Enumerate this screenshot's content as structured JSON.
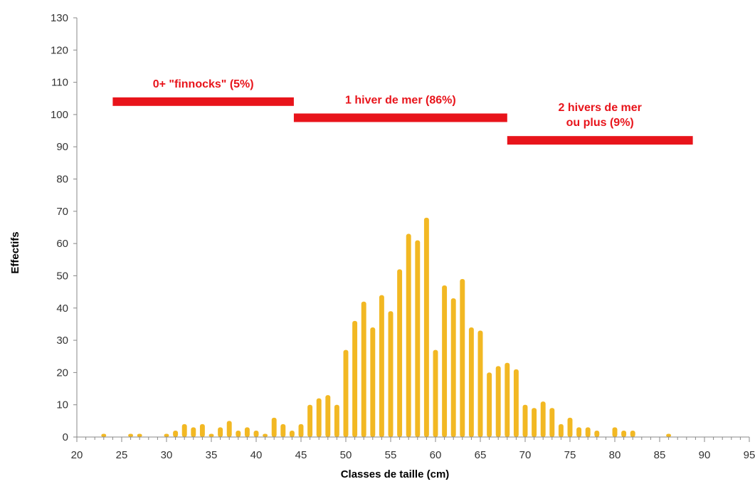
{
  "chart_data": {
    "type": "bar",
    "xlabel": "Classes de taille (cm)",
    "ylabel": "Effectifs",
    "xlim": [
      20,
      95
    ],
    "ylim": [
      0,
      130
    ],
    "x_ticks": [
      20,
      25,
      30,
      35,
      40,
      45,
      50,
      55,
      60,
      65,
      70,
      75,
      80,
      85,
      90,
      95
    ],
    "y_ticks": [
      0,
      10,
      20,
      30,
      40,
      50,
      60,
      70,
      80,
      90,
      100,
      110,
      120,
      130
    ],
    "grid": false,
    "bar_color": "#f2b823",
    "bars": [
      {
        "x": 23,
        "y": 1
      },
      {
        "x": 26,
        "y": 1
      },
      {
        "x": 27,
        "y": 1
      },
      {
        "x": 30,
        "y": 1
      },
      {
        "x": 31,
        "y": 2
      },
      {
        "x": 32,
        "y": 4
      },
      {
        "x": 33,
        "y": 3
      },
      {
        "x": 34,
        "y": 4
      },
      {
        "x": 35,
        "y": 1
      },
      {
        "x": 36,
        "y": 3
      },
      {
        "x": 37,
        "y": 5
      },
      {
        "x": 38,
        "y": 2
      },
      {
        "x": 39,
        "y": 3
      },
      {
        "x": 40,
        "y": 2
      },
      {
        "x": 41,
        "y": 1
      },
      {
        "x": 42,
        "y": 6
      },
      {
        "x": 43,
        "y": 4
      },
      {
        "x": 44,
        "y": 2
      },
      {
        "x": 45,
        "y": 4
      },
      {
        "x": 46,
        "y": 10
      },
      {
        "x": 47,
        "y": 12
      },
      {
        "x": 48,
        "y": 13
      },
      {
        "x": 49,
        "y": 10
      },
      {
        "x": 50,
        "y": 27
      },
      {
        "x": 51,
        "y": 36
      },
      {
        "x": 52,
        "y": 42
      },
      {
        "x": 53,
        "y": 34
      },
      {
        "x": 54,
        "y": 44
      },
      {
        "x": 55,
        "y": 39
      },
      {
        "x": 56,
        "y": 52
      },
      {
        "x": 57,
        "y": 63
      },
      {
        "x": 58,
        "y": 61
      },
      {
        "x": 59,
        "y": 68
      },
      {
        "x": 60,
        "y": 27
      },
      {
        "x": 61,
        "y": 47
      },
      {
        "x": 62,
        "y": 43
      },
      {
        "x": 63,
        "y": 49
      },
      {
        "x": 64,
        "y": 34
      },
      {
        "x": 65,
        "y": 33
      },
      {
        "x": 66,
        "y": 20
      },
      {
        "x": 67,
        "y": 22
      },
      {
        "x": 68,
        "y": 23
      },
      {
        "x": 69,
        "y": 21
      },
      {
        "x": 70,
        "y": 10
      },
      {
        "x": 71,
        "y": 9
      },
      {
        "x": 72,
        "y": 11
      },
      {
        "x": 73,
        "y": 9
      },
      {
        "x": 74,
        "y": 4
      },
      {
        "x": 75,
        "y": 6
      },
      {
        "x": 76,
        "y": 3
      },
      {
        "x": 77,
        "y": 3
      },
      {
        "x": 78,
        "y": 2
      },
      {
        "x": 80,
        "y": 3
      },
      {
        "x": 81,
        "y": 2
      },
      {
        "x": 82,
        "y": 2
      },
      {
        "x": 86,
        "y": 1
      }
    ],
    "annotations": [
      {
        "label_lines": [
          "0+ \"finnocks\" (5%)"
        ],
        "x_start": 24,
        "x_end": 44.2,
        "y": 104,
        "color": "#e8141b"
      },
      {
        "label_lines": [
          "1 hiver de mer (86%)"
        ],
        "x_start": 44.2,
        "x_end": 68,
        "y": 99,
        "color": "#e8141b"
      },
      {
        "label_lines": [
          "2 hivers de mer",
          "ou plus (9%)"
        ],
        "x_start": 68,
        "x_end": 88.7,
        "y": 92,
        "color": "#e8141b"
      }
    ]
  }
}
